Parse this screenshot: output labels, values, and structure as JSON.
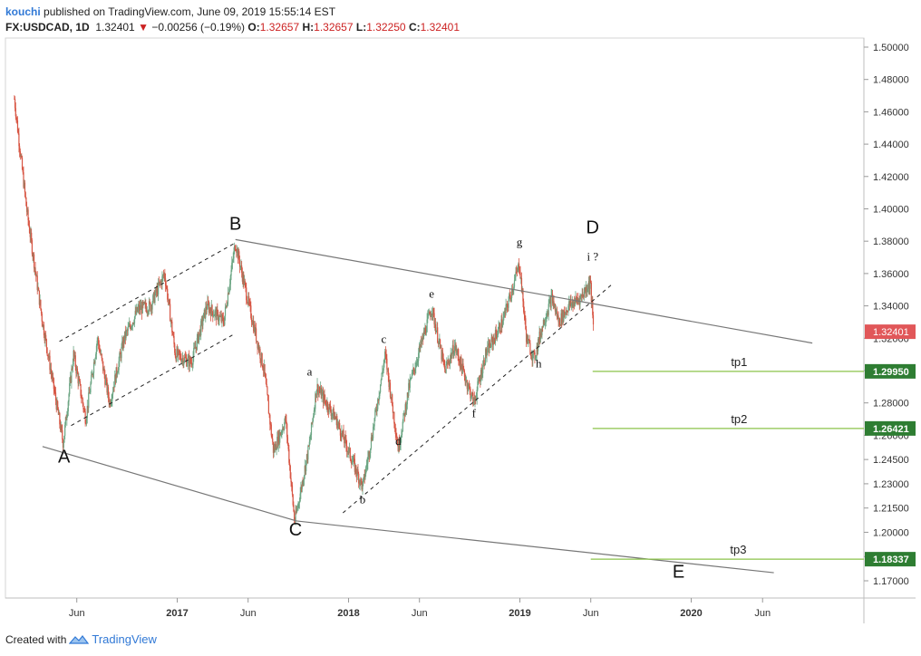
{
  "header": {
    "user": "kouchi",
    "published_text": "published on TradingView.com, June 09, 2019 15:55:14 EST",
    "symbol": "FX:USDCAD, 1D",
    "last": "1.32401",
    "change_arrow": "▼",
    "change": "−0.00256 (−0.19%)",
    "o_label": "O:",
    "o_value": "1.32657",
    "h_label": "H:",
    "h_value": "1.32657",
    "l_label": "L:",
    "l_value": "1.32250",
    "c_label": "C:",
    "c_value": "1.32401"
  },
  "footer": {
    "created_with": "Created with",
    "brand": "TradingView"
  },
  "colors": {
    "up": "#6ba583",
    "down": "#d75442",
    "trend": "#777777",
    "target": "#2e7d32",
    "tp_line": "#8bc34a",
    "last_badge": "#e15759",
    "axis": "#c8c8c8",
    "accent": "#3179d6"
  },
  "chart_data": {
    "type": "candlestick",
    "symbol": "FX:USDCAD",
    "interval": "1D",
    "ylim": [
      1.16,
      1.505
    ],
    "y_ticks": [
      "1.50000",
      "1.48000",
      "1.46000",
      "1.44000",
      "1.42000",
      "1.40000",
      "1.38000",
      "1.36000",
      "1.34000",
      "1.32000",
      "1.30000",
      "1.28000",
      "1.26000",
      "1.24500",
      "1.23000",
      "1.21500",
      "1.20000",
      "1.18500",
      "1.17000"
    ],
    "x_ticks": [
      "Jun",
      "2017",
      "Jun",
      "2018",
      "Jun",
      "2019",
      "Jun",
      "2020",
      "Jun"
    ],
    "last_price": "1.32401",
    "price_path": [
      {
        "date": "2016-01-20",
        "value": 1.468
      },
      {
        "date": "2016-02-15",
        "value": 1.4
      },
      {
        "date": "2016-03-20",
        "value": 1.33
      },
      {
        "date": "2016-05-03",
        "value": 1.255
      },
      {
        "date": "2016-05-25",
        "value": 1.31
      },
      {
        "date": "2016-06-20",
        "value": 1.27
      },
      {
        "date": "2016-07-15",
        "value": 1.32
      },
      {
        "date": "2016-08-10",
        "value": 1.28
      },
      {
        "date": "2016-09-10",
        "value": 1.32
      },
      {
        "date": "2016-10-10",
        "value": 1.338
      },
      {
        "date": "2016-11-05",
        "value": 1.34
      },
      {
        "date": "2016-12-05",
        "value": 1.36
      },
      {
        "date": "2016-12-28",
        "value": 1.31
      },
      {
        "date": "2017-01-31",
        "value": 1.305
      },
      {
        "date": "2017-03-05",
        "value": 1.34
      },
      {
        "date": "2017-04-10",
        "value": 1.33
      },
      {
        "date": "2017-05-05",
        "value": 1.379
      },
      {
        "date": "2017-05-30",
        "value": 1.345
      },
      {
        "date": "2017-07-05",
        "value": 1.3
      },
      {
        "date": "2017-07-25",
        "value": 1.25
      },
      {
        "date": "2017-08-20",
        "value": 1.27
      },
      {
        "date": "2017-09-08",
        "value": 1.206
      },
      {
        "date": "2017-10-10",
        "value": 1.255
      },
      {
        "date": "2017-10-25",
        "value": 1.29
      },
      {
        "date": "2017-12-05",
        "value": 1.27
      },
      {
        "date": "2018-01-31",
        "value": 1.228
      },
      {
        "date": "2018-02-20",
        "value": 1.26
      },
      {
        "date": "2018-03-20",
        "value": 1.31
      },
      {
        "date": "2018-04-17",
        "value": 1.252
      },
      {
        "date": "2018-05-10",
        "value": 1.29
      },
      {
        "date": "2018-06-27",
        "value": 1.339
      },
      {
        "date": "2018-07-25",
        "value": 1.3
      },
      {
        "date": "2018-08-15",
        "value": 1.315
      },
      {
        "date": "2018-09-25",
        "value": 1.28
      },
      {
        "date": "2018-10-20",
        "value": 1.31
      },
      {
        "date": "2018-11-25",
        "value": 1.33
      },
      {
        "date": "2018-12-31",
        "value": 1.366
      },
      {
        "date": "2019-01-15",
        "value": 1.32
      },
      {
        "date": "2019-01-31",
        "value": 1.307
      },
      {
        "date": "2019-02-20",
        "value": 1.33
      },
      {
        "date": "2019-03-10",
        "value": 1.345
      },
      {
        "date": "2019-03-25",
        "value": 1.33
      },
      {
        "date": "2019-04-15",
        "value": 1.34
      },
      {
        "date": "2019-05-10",
        "value": 1.345
      },
      {
        "date": "2019-05-31",
        "value": 1.355
      },
      {
        "date": "2019-06-07",
        "value": 1.324
      }
    ],
    "trendlines": [
      {
        "from": {
          "date": "2017-05-05",
          "value": 1.381
        },
        "to": {
          "date": "2020-09-15",
          "value": 1.317
        }
      },
      {
        "from": {
          "date": "2016-03-20",
          "value": 1.253
        },
        "to": {
          "date": "2017-09-12",
          "value": 1.207
        }
      },
      {
        "from": {
          "date": "2017-09-12",
          "value": 1.207
        },
        "to": {
          "date": "2020-06-25",
          "value": 1.175
        }
      }
    ],
    "channels": [
      {
        "from": {
          "date": "2016-04-25",
          "value": 1.318
        },
        "to": {
          "date": "2017-05-05",
          "value": 1.379
        }
      },
      {
        "from": {
          "date": "2016-05-20",
          "value": 1.266
        },
        "to": {
          "date": "2017-05-05",
          "value": 1.323
        }
      },
      {
        "from": {
          "date": "2017-12-20",
          "value": 1.212
        },
        "to": {
          "date": "2019-07-15",
          "value": 1.353
        }
      }
    ],
    "wave_labels": [
      {
        "text": "A",
        "date": "2016-05-05",
        "value": 1.243
      },
      {
        "text": "B",
        "date": "2017-05-05",
        "value": 1.387
      },
      {
        "text": "C",
        "date": "2017-09-10",
        "value": 1.198
      },
      {
        "text": "D",
        "date": "2019-06-05",
        "value": 1.385
      },
      {
        "text": "E",
        "date": "2019-12-05",
        "value": 1.172
      },
      {
        "text": "a",
        "date": "2017-10-10",
        "value": 1.297
      },
      {
        "text": "b",
        "date": "2018-01-31",
        "value": 1.218
      },
      {
        "text": "c",
        "date": "2018-03-17",
        "value": 1.317
      },
      {
        "text": "d",
        "date": "2018-04-17",
        "value": 1.254
      },
      {
        "text": "e",
        "date": "2018-06-27",
        "value": 1.345
      },
      {
        "text": "f",
        "date": "2018-09-25",
        "value": 1.271
      },
      {
        "text": "g",
        "date": "2018-12-31",
        "value": 1.377
      },
      {
        "text": "h",
        "date": "2019-02-10",
        "value": 1.302
      },
      {
        "text": "i ?",
        "date": "2019-06-05",
        "value": 1.368
      }
    ],
    "targets": [
      {
        "name": "tp1",
        "value": 1.2995,
        "value_label": "1.29950",
        "from": "2019-06-05"
      },
      {
        "name": "tp2",
        "value": 1.26421,
        "value_label": "1.26421",
        "from": "2019-06-05"
      },
      {
        "name": "tp3",
        "value": 1.18337,
        "value_label": "1.18337",
        "from": "2019-06-01"
      }
    ]
  }
}
